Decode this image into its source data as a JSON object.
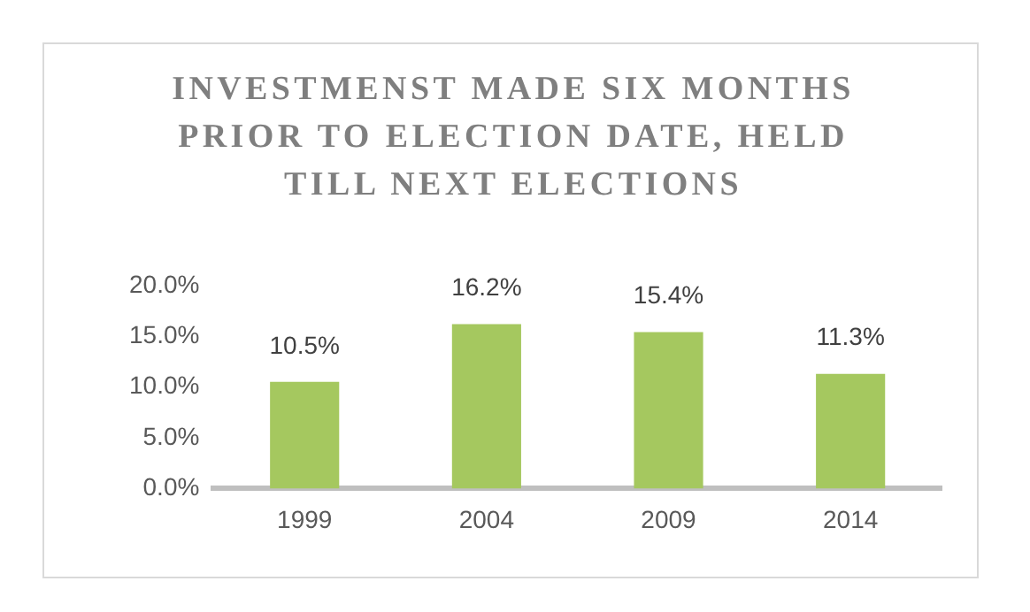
{
  "chart_data": {
    "type": "bar",
    "title": "INVESTMENST MADE SIX MONTHS PRIOR TO ELECTION DATE, HELD TILL NEXT ELECTIONS",
    "categories": [
      "1999",
      "2004",
      "2009",
      "2014"
    ],
    "values": [
      10.5,
      16.2,
      15.4,
      11.3
    ],
    "value_labels": [
      "10.5%",
      "16.2%",
      "15.4%",
      "11.3%"
    ],
    "color": "#a5c85f",
    "ylim": [
      0,
      20
    ],
    "yticks": [
      {
        "value": 0,
        "label": "0.0%"
      },
      {
        "value": 5,
        "label": "5.0%"
      },
      {
        "value": 10,
        "label": "10.0%"
      },
      {
        "value": 15,
        "label": "15.0%"
      },
      {
        "value": 20,
        "label": "20.0%"
      }
    ],
    "grid": false,
    "legend": false
  }
}
